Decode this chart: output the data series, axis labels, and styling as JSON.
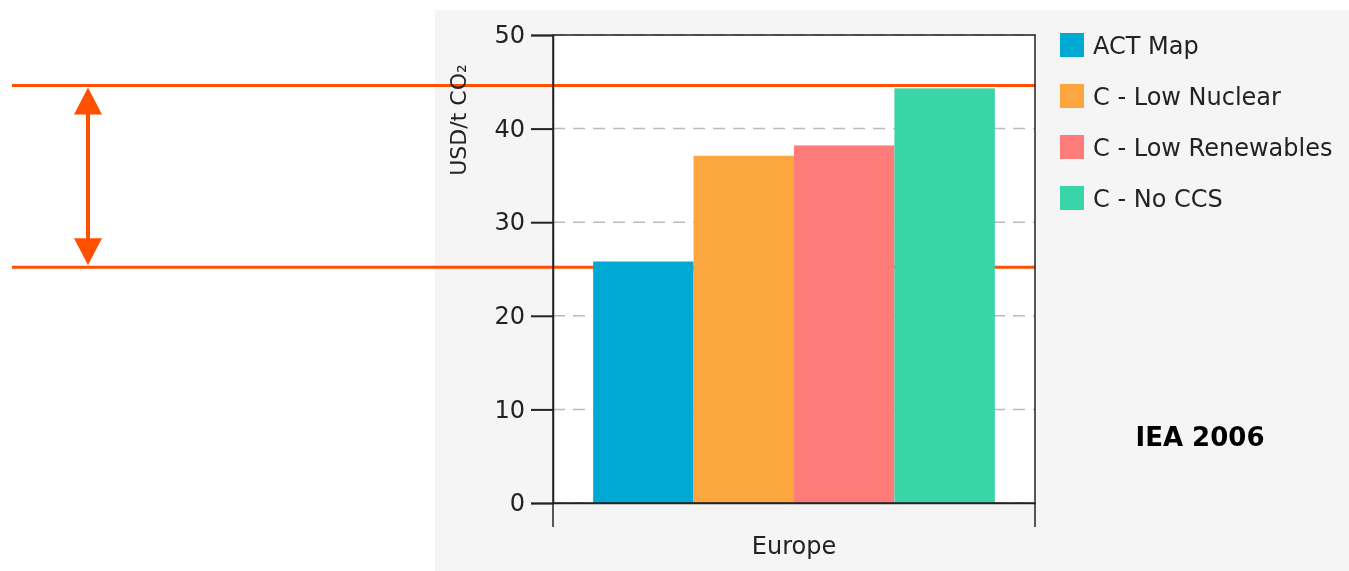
{
  "chart_data": {
    "type": "bar",
    "categories": [
      "Europe"
    ],
    "series": [
      {
        "name": "ACT Map",
        "color": "#00a8d4",
        "values": [
          25.8
        ]
      },
      {
        "name": "C - Low Nuclear",
        "color": "#fca63f",
        "values": [
          37.1
        ]
      },
      {
        "name": "C - Low Renewables",
        "color": "#fd7b78",
        "values": [
          38.2
        ]
      },
      {
        "name": "C - No CCS",
        "color": "#39d4a8",
        "values": [
          44.3
        ]
      }
    ],
    "ylabel": "USD/t CO₂",
    "ylim": [
      0,
      50
    ],
    "yticks": [
      0,
      10,
      20,
      30,
      40,
      50
    ],
    "grid": "y",
    "legend": "top right",
    "ref_lines": [
      {
        "axis": "y",
        "value": 44.6,
        "color": "#ff4f00"
      },
      {
        "axis": "y",
        "value": 25.2,
        "color": "#ff4f00"
      }
    ],
    "annotations": [
      "IEA 2006"
    ]
  }
}
